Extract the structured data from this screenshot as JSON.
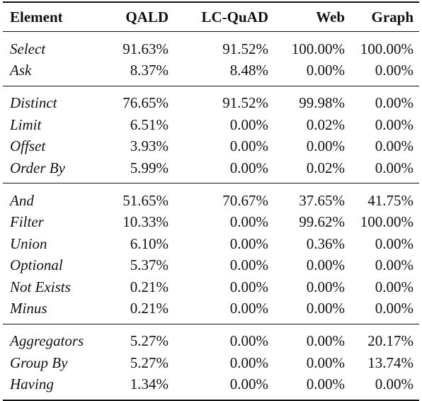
{
  "headers": [
    "Element",
    "QALD",
    "LC-QuAD",
    "Web",
    "Graph"
  ],
  "groups": [
    [
      [
        "Select",
        "91.63%",
        "91.52%",
        "100.00%",
        "100.00%"
      ],
      [
        "Ask",
        "8.37%",
        "8.48%",
        "0.00%",
        "0.00%"
      ]
    ],
    [
      [
        "Distinct",
        "76.65%",
        "91.52%",
        "99.98%",
        "0.00%"
      ],
      [
        "Limit",
        "6.51%",
        "0.00%",
        "0.02%",
        "0.00%"
      ],
      [
        "Offset",
        "3.93%",
        "0.00%",
        "0.00%",
        "0.00%"
      ],
      [
        "Order By",
        "5.99%",
        "0.00%",
        "0.02%",
        "0.00%"
      ]
    ],
    [
      [
        "And",
        "51.65%",
        "70.67%",
        "37.65%",
        "41.75%"
      ],
      [
        "Filter",
        "10.33%",
        "0.00%",
        "99.62%",
        "100.00%"
      ],
      [
        "Union",
        "6.10%",
        "0.00%",
        "0.36%",
        "0.00%"
      ],
      [
        "Optional",
        "5.37%",
        "0.00%",
        "0.00%",
        "0.00%"
      ],
      [
        "Not Exists",
        "0.21%",
        "0.00%",
        "0.00%",
        "0.00%"
      ],
      [
        "Minus",
        "0.21%",
        "0.00%",
        "0.00%",
        "0.00%"
      ]
    ],
    [
      [
        "Aggregators",
        "5.27%",
        "0.00%",
        "0.00%",
        "20.17%"
      ],
      [
        "Group By",
        "5.27%",
        "0.00%",
        "0.00%",
        "13.74%"
      ],
      [
        "Having",
        "1.34%",
        "0.00%",
        "0.00%",
        "0.00%"
      ]
    ]
  ]
}
